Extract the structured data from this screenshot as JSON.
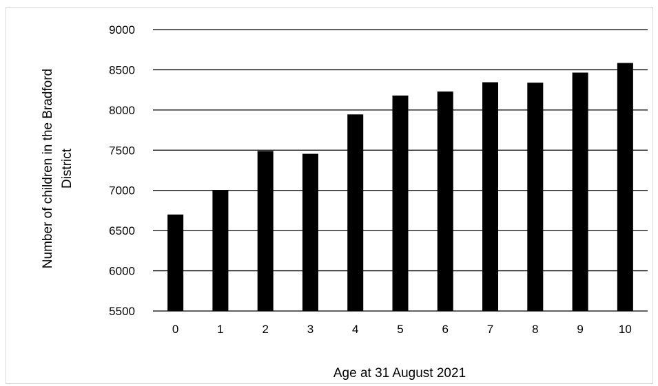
{
  "chart_data": {
    "type": "bar",
    "title": "",
    "xlabel": "Age at 31 August 2021",
    "ylabel_lines": [
      "Number of children in the Bradford",
      "District"
    ],
    "categories": [
      "0",
      "1",
      "2",
      "3",
      "4",
      "5",
      "6",
      "7",
      "8",
      "9",
      "10"
    ],
    "values": [
      6700,
      7005,
      7490,
      7455,
      7945,
      8180,
      8230,
      8345,
      8340,
      8465,
      8585
    ],
    "ylim": [
      5500,
      9000
    ],
    "yticks": [
      5500,
      6000,
      6500,
      7000,
      7500,
      8000,
      8500,
      9000
    ],
    "grid": true,
    "legend": "none",
    "bar_color": "#000000",
    "grid_color": "#000000"
  }
}
